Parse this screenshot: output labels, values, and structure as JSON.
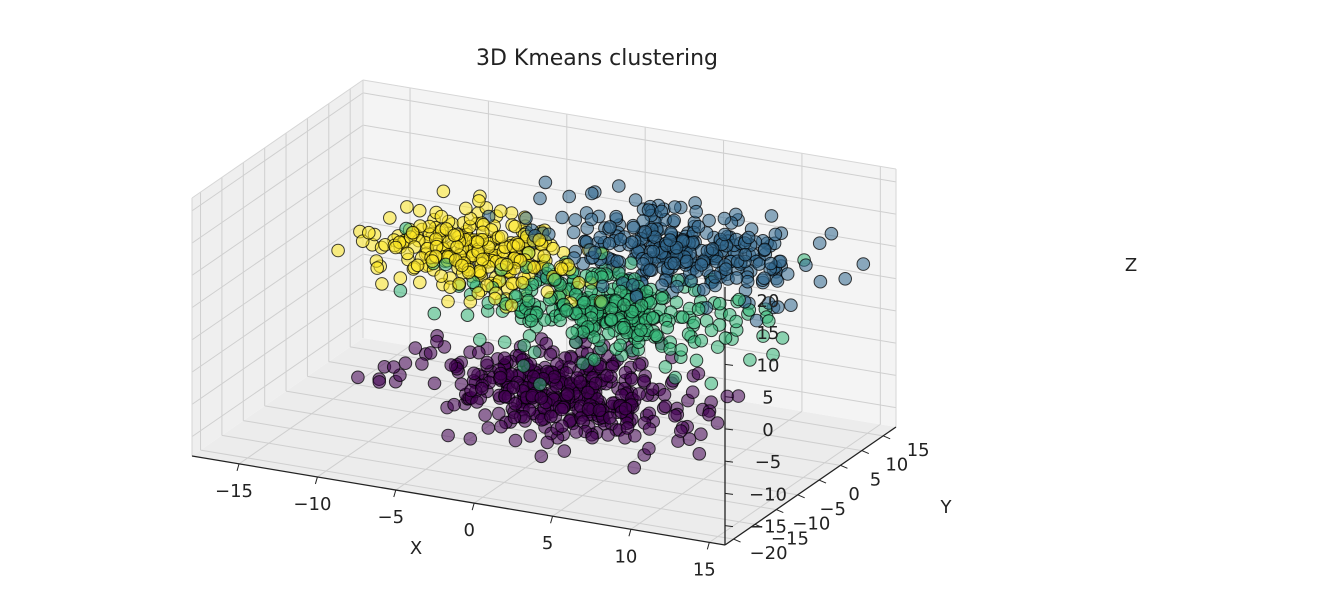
{
  "chart_data": {
    "type": "scatter",
    "projection": "3d",
    "title": "3D Kmeans clustering",
    "xlabel": "X",
    "ylabel": "Y",
    "zlabel": "Z",
    "xlim": [
      -18,
      16
    ],
    "ylim": [
      -22,
      18
    ],
    "zlim": [
      -18,
      22
    ],
    "xticks": [
      -15,
      -10,
      -5,
      0,
      5,
      10,
      15
    ],
    "yticks": [
      -20,
      -15,
      -10,
      -5,
      0,
      5,
      10,
      15
    ],
    "zticks": [
      -15,
      -10,
      -5,
      0,
      5,
      10,
      15,
      20
    ],
    "grid": true,
    "legend": "none",
    "marker_edge_color": "#000000",
    "point_opacity": 0.55,
    "series": [
      {
        "color": "#440154",
        "center": [
          0,
          -2,
          -10
        ],
        "spread": [
          4.0,
          4.5,
          2.2
        ],
        "count": 420
      },
      {
        "color": "#35b779",
        "center": [
          2,
          2,
          2
        ],
        "spread": [
          4.0,
          4.0,
          2.6
        ],
        "count": 320
      },
      {
        "color": "#31688e",
        "center": [
          5,
          9,
          9
        ],
        "spread": [
          3.8,
          3.8,
          2.6
        ],
        "count": 320
      },
      {
        "color": "#fde725",
        "center": [
          -7,
          4,
          6
        ],
        "spread": [
          3.2,
          3.5,
          2.6
        ],
        "count": 280
      }
    ]
  }
}
